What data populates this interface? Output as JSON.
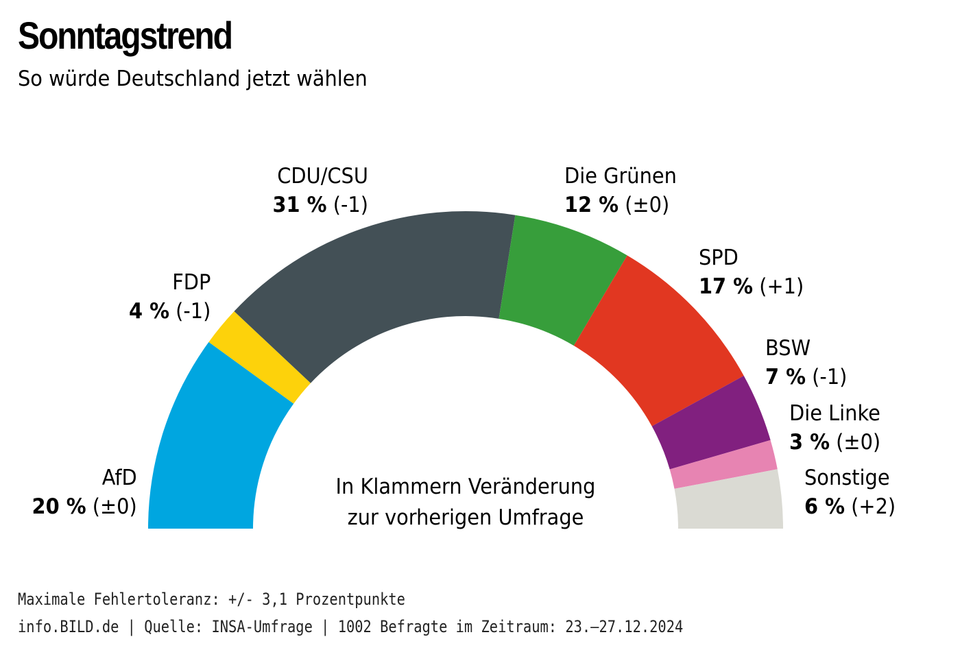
{
  "header": {
    "title": "Sonntagstrend",
    "subtitle": "So würde Deutschland jetzt wählen"
  },
  "center_note": {
    "line1": "In Klammern Veränderung",
    "line2": "zur vorherigen Umfrage"
  },
  "footer": {
    "line1": "Maximale Fehlertoleranz: +/- 3,1 Prozentpunkte",
    "line2": "info.BILD.de | Quelle: INSA-Umfrage | 1002 Befragte im Zeitraum: 23.–27.12.2024"
  },
  "chart_data": {
    "type": "pie",
    "variant": "half-donut",
    "title": "Sonntagstrend",
    "subtitle": "So würde Deutschland jetzt wählen",
    "unit": "%",
    "note": "In Klammern Veränderung zur vorherigen Umfrage",
    "order": "left-to-right",
    "slices": [
      {
        "party": "AfD",
        "value": 20,
        "change": "(±0)",
        "color": "#00a6e0",
        "label_side": "left"
      },
      {
        "party": "FDP",
        "value": 4,
        "change": "(-1)",
        "color": "#fdd20b",
        "label_side": "left"
      },
      {
        "party": "CDU/CSU",
        "value": 31,
        "change": "(-1)",
        "color": "#435056",
        "label_side": "left"
      },
      {
        "party": "Die Grünen",
        "value": 12,
        "change": "(±0)",
        "color": "#379e3b",
        "label_side": "right"
      },
      {
        "party": "SPD",
        "value": 17,
        "change": "(+1)",
        "color": "#e13721",
        "label_side": "right"
      },
      {
        "party": "BSW",
        "value": 7,
        "change": "(-1)",
        "color": "#81207f",
        "label_side": "right"
      },
      {
        "party": "Die Linke",
        "value": 3,
        "change": "(±0)",
        "color": "#e784b2",
        "label_side": "right"
      },
      {
        "party": "Sonstige",
        "value": 6,
        "change": "(+2)",
        "color": "#dadad3",
        "label_side": "right"
      }
    ],
    "total": 100
  }
}
